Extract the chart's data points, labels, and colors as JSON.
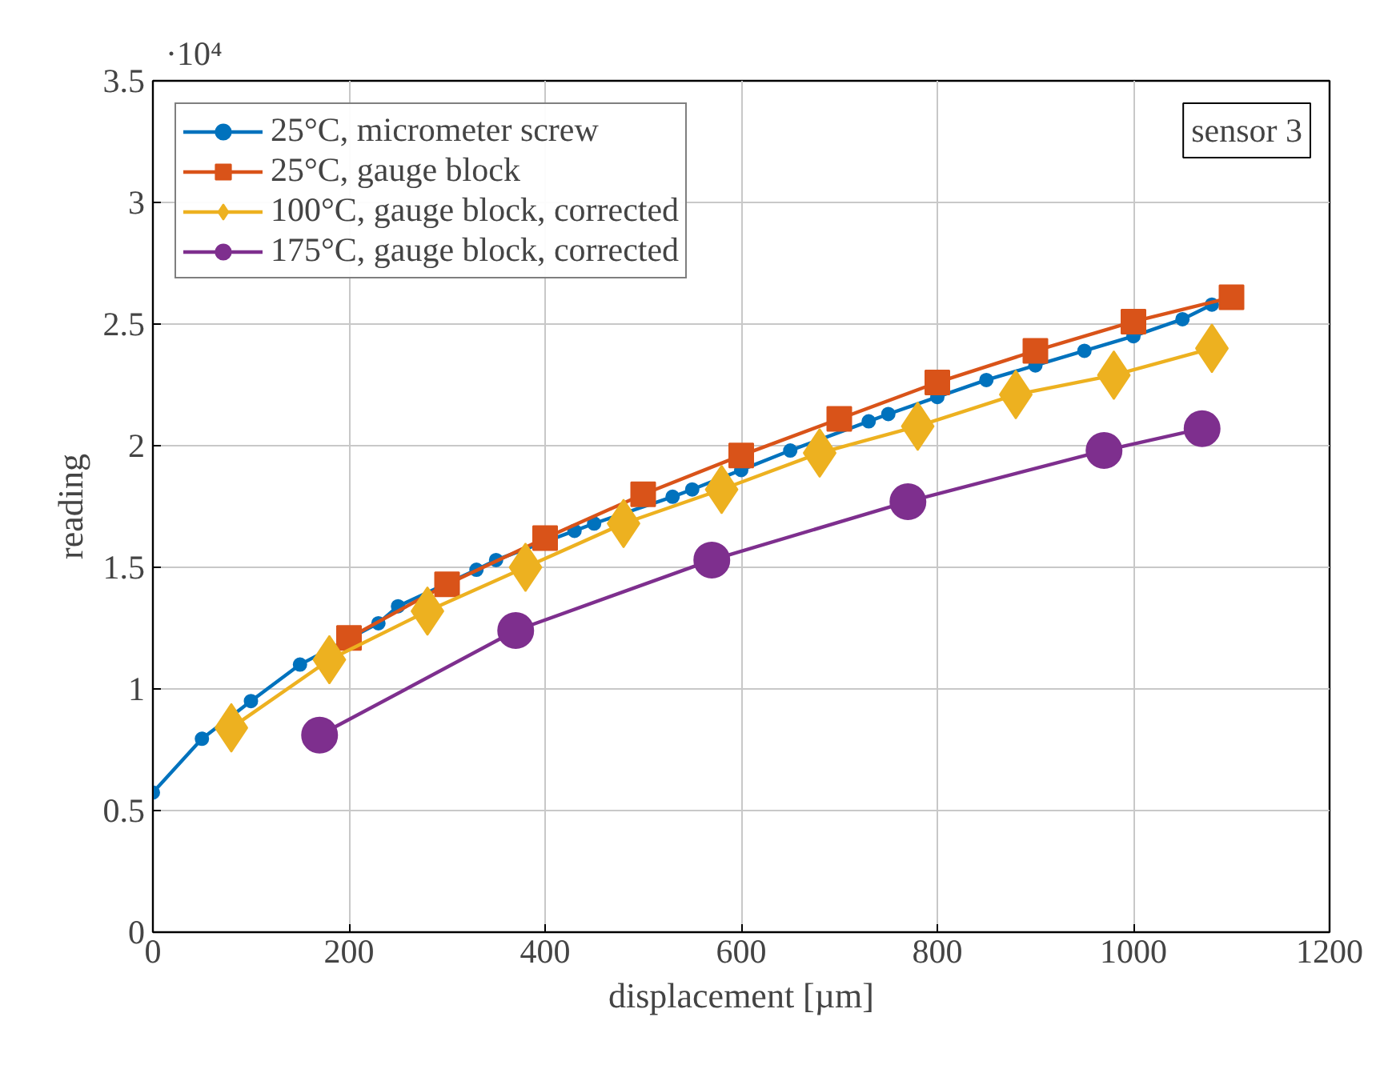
{
  "chart_data": {
    "type": "line",
    "xlabel": "displacement [µm]",
    "ylabel": "reading",
    "xlim": [
      0,
      1200
    ],
    "xticks": [
      0,
      200,
      400,
      600,
      800,
      1000,
      1200
    ],
    "ylim": [
      0,
      3.5
    ],
    "yticks": [
      0,
      0.5,
      1,
      1.5,
      2,
      2.5,
      3,
      3.5
    ],
    "grid": true,
    "legend": "top left",
    "line_style": "solid",
    "annotations": [
      "·10⁴",
      "sensor 3"
    ],
    "series": [
      {
        "name": "25°C, micrometer screw",
        "color": "#0072bd",
        "marker": "circle",
        "x": [
          0,
          50,
          100,
          150,
          230,
          250,
          330,
          350,
          430,
          450,
          530,
          550,
          600,
          650,
          730,
          750,
          800,
          850,
          900,
          950,
          1000,
          1050,
          1080
        ],
        "values": [
          0.574,
          0.795,
          0.95,
          1.1,
          1.27,
          1.34,
          1.49,
          1.53,
          1.65,
          1.68,
          1.79,
          1.82,
          1.9,
          1.98,
          2.1,
          2.13,
          2.2,
          2.27,
          2.33,
          2.39,
          2.45,
          2.52,
          2.58
        ]
      },
      {
        "name": "25°C, gauge block",
        "color": "#d95319",
        "marker": "square",
        "x": [
          200,
          300,
          400,
          500,
          600,
          700,
          800,
          900,
          1000,
          1100
        ],
        "values": [
          1.21,
          1.43,
          1.62,
          1.8,
          1.96,
          2.11,
          2.26,
          2.39,
          2.51,
          2.61
        ]
      },
      {
        "name": "100°C, gauge block, corrected",
        "color": "#edb120",
        "marker": "diamond",
        "x": [
          80,
          180,
          280,
          380,
          480,
          580,
          680,
          780,
          880,
          980,
          1080
        ],
        "values": [
          0.84,
          1.12,
          1.32,
          1.5,
          1.68,
          1.82,
          1.97,
          2.08,
          2.21,
          2.29,
          2.4
        ]
      },
      {
        "name": "175°C, gauge block, corrected",
        "color": "#7e2f8e",
        "marker": "circle",
        "x": [
          170,
          370,
          570,
          770,
          970,
          1070
        ],
        "values": [
          0.81,
          1.24,
          1.53,
          1.77,
          1.98,
          2.07
        ]
      }
    ]
  }
}
